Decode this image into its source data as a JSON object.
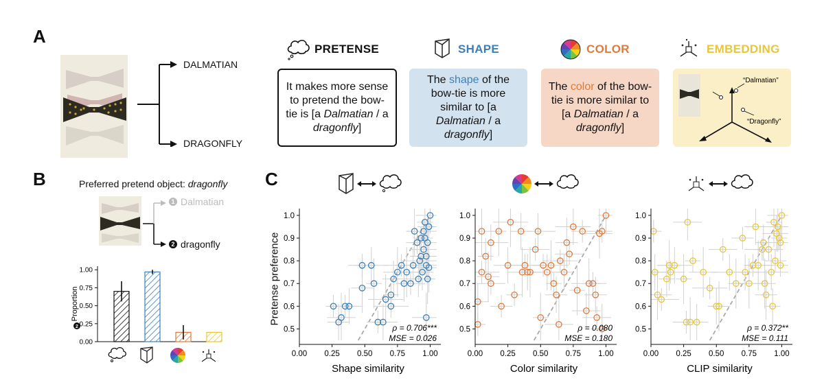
{
  "panelA": {
    "letter": "A",
    "branch_top": "DALMATIAN",
    "branch_bottom": "DRAGONFLY",
    "modes": [
      {
        "title": "PRETENSE",
        "color": "#111111",
        "text_pre": "It makes more sense to pretend the bow-tie is [a ",
        "i1": "Dalmatian",
        " mid": "",
        "text_mid": " / a ",
        "i2": "dragonfly",
        "text_post": "]",
        "bg": "#ffffff",
        "border": "#111111"
      },
      {
        "title": "SHAPE",
        "color": "#3d7fb8",
        "text_pre": "The ",
        "hl": "shape",
        "text_mid2": " of the bow-tie is more similar to [a ",
        "i1": "Dalmatian",
        "text_mid": " / a ",
        "i2": "dragonfly",
        "text_post": "]",
        "bg": "#d3e2ef"
      },
      {
        "title": "COLOR",
        "color": "#e07a3a",
        "text_pre": "The ",
        "hl": "color",
        "text_mid2": " of the bow-tie is more similar to [a ",
        "i1": "Dalmatian",
        "text_mid": " / a ",
        "i2": "dragonfly",
        "text_post": "]",
        "bg": "#f6d6c5"
      },
      {
        "title": "EMBEDDING",
        "color": "#e8c63a",
        "bg": "#fbefc8",
        "lab1": "“Dalmatian”",
        "lab2": "“Dragonfly”"
      }
    ]
  },
  "panelB": {
    "letter": "B",
    "title_pre": "Preferred pretend object: ",
    "title_obj": "dragonfly",
    "opt1": "Dalmatian",
    "opt2": "dragonfly",
    "opt1_num": "1",
    "opt2_num": "2",
    "ylabel": "Proportion",
    "yticks": [
      "0.00",
      "0.25",
      "0.50",
      "0.75",
      "1.00"
    ]
  },
  "panelC": {
    "letter": "C",
    "ylabel": "Pretense preference"
  },
  "colors": {
    "shape": "#3d7fb8",
    "color": "#e07a3a",
    "clip": "#e8c63a",
    "pretense": "#111111",
    "grey": "#bbbbbb"
  },
  "chart_data": [
    {
      "type": "bar",
      "categories": [
        "pretense",
        "shape",
        "color",
        "embedding"
      ],
      "values": [
        0.7,
        0.97,
        0.13,
        0.13
      ],
      "errors": [
        0.14,
        0.03,
        0.1,
        0.0
      ],
      "ylabel": "Proportion",
      "ylim": [
        0,
        1.05
      ]
    },
    {
      "type": "scatter",
      "xlabel": "Shape similarity",
      "ylabel": "Pretense preference",
      "xlim": [
        0,
        1.05
      ],
      "ylim": [
        0.45,
        1.03
      ],
      "xticks": [
        "0.00",
        "0.25",
        "0.50",
        "0.75",
        "1.00"
      ],
      "yticks": [
        "0.5",
        "0.6",
        "0.7",
        "0.8",
        "0.9",
        "1.0"
      ],
      "stat1_label": "ρ = 0.706***",
      "stat2_label": "MSE = 0.026",
      "points": [
        [
          0.26,
          0.6
        ],
        [
          0.3,
          0.53
        ],
        [
          0.32,
          0.55
        ],
        [
          0.35,
          0.6
        ],
        [
          0.38,
          0.6
        ],
        [
          0.48,
          0.68
        ],
        [
          0.48,
          0.78
        ],
        [
          0.55,
          0.78
        ],
        [
          0.57,
          0.7
        ],
        [
          0.6,
          0.53
        ],
        [
          0.64,
          0.53
        ],
        [
          0.66,
          0.63
        ],
        [
          0.7,
          0.65
        ],
        [
          0.72,
          0.72
        ],
        [
          0.75,
          0.75
        ],
        [
          0.78,
          0.78
        ],
        [
          0.8,
          0.7
        ],
        [
          0.82,
          0.75
        ],
        [
          0.85,
          0.7
        ],
        [
          0.87,
          0.78
        ],
        [
          0.88,
          0.93
        ],
        [
          0.9,
          0.88
        ],
        [
          0.91,
          0.72
        ],
        [
          0.92,
          0.8
        ],
        [
          0.93,
          0.9
        ],
        [
          0.94,
          0.75
        ],
        [
          0.95,
          0.85
        ],
        [
          0.95,
          0.93
        ],
        [
          0.96,
          0.97
        ],
        [
          0.97,
          0.82
        ],
        [
          0.97,
          0.78
        ],
        [
          0.98,
          0.88
        ],
        [
          0.98,
          0.72
        ],
        [
          0.99,
          0.95
        ],
        [
          1.0,
          1.0
        ],
        [
          0.99,
          0.77
        ],
        [
          0.96,
          0.9
        ],
        [
          0.93,
          0.82
        ],
        [
          0.97,
          0.55
        ],
        [
          0.7,
          0.6
        ]
      ]
    },
    {
      "type": "scatter",
      "xlabel": "Color similarity",
      "ylabel": "",
      "xlim": [
        0,
        1.05
      ],
      "ylim": [
        0.45,
        1.03
      ],
      "xticks": [
        "0.00",
        "0.25",
        "0.50",
        "0.75",
        "1.00"
      ],
      "yticks": [
        "0.5",
        "0.6",
        "0.7",
        "0.8",
        "0.9",
        "1.0"
      ],
      "stat1_label": "ρ = 0.080",
      "stat2_label": "MSE = 0.180",
      "points": [
        [
          0.02,
          0.52
        ],
        [
          0.02,
          0.62
        ],
        [
          0.05,
          0.93
        ],
        [
          0.05,
          0.75
        ],
        [
          0.08,
          0.82
        ],
        [
          0.1,
          0.73
        ],
        [
          0.12,
          0.7
        ],
        [
          0.12,
          0.88
        ],
        [
          0.18,
          0.93
        ],
        [
          0.2,
          0.6
        ],
        [
          0.25,
          0.78
        ],
        [
          0.27,
          0.97
        ],
        [
          0.3,
          0.65
        ],
        [
          0.35,
          0.93
        ],
        [
          0.36,
          0.75
        ],
        [
          0.38,
          0.78
        ],
        [
          0.4,
          0.75
        ],
        [
          0.42,
          0.75
        ],
        [
          0.46,
          0.85
        ],
        [
          0.48,
          0.93
        ],
        [
          0.5,
          0.55
        ],
        [
          0.52,
          0.78
        ],
        [
          0.55,
          0.75
        ],
        [
          0.58,
          0.78
        ],
        [
          0.6,
          0.7
        ],
        [
          0.62,
          0.65
        ],
        [
          0.64,
          0.52
        ],
        [
          0.65,
          0.8
        ],
        [
          0.68,
          0.75
        ],
        [
          0.7,
          0.88
        ],
        [
          0.72,
          0.83
        ],
        [
          0.75,
          0.95
        ],
        [
          0.78,
          0.67
        ],
        [
          0.82,
          0.93
        ],
        [
          0.85,
          0.58
        ],
        [
          0.87,
          0.7
        ],
        [
          0.9,
          0.7
        ],
        [
          0.92,
          0.65
        ],
        [
          0.95,
          0.92
        ],
        [
          0.97,
          0.93
        ],
        [
          1.0,
          1.0
        ],
        [
          0.97,
          0.5
        ],
        [
          0.93,
          0.55
        ]
      ]
    },
    {
      "type": "scatter",
      "xlabel": "CLIP similarity",
      "ylabel": "",
      "xlim": [
        0,
        1.05
      ],
      "ylim": [
        0.45,
        1.03
      ],
      "xticks": [
        "0.00",
        "0.25",
        "0.50",
        "0.75",
        "1.00"
      ],
      "yticks": [
        "0.5",
        "0.6",
        "0.7",
        "0.8",
        "0.9",
        "1.0"
      ],
      "stat1_label": "ρ = 0.372**",
      "stat2_label": "MSE = 0.111",
      "points": [
        [
          0.02,
          0.93
        ],
        [
          0.03,
          0.75
        ],
        [
          0.05,
          0.65
        ],
        [
          0.08,
          0.63
        ],
        [
          0.12,
          0.72
        ],
        [
          0.14,
          0.78
        ],
        [
          0.15,
          0.75
        ],
        [
          0.18,
          0.78
        ],
        [
          0.25,
          0.72
        ],
        [
          0.27,
          0.53
        ],
        [
          0.28,
          0.97
        ],
        [
          0.3,
          0.53
        ],
        [
          0.32,
          0.8
        ],
        [
          0.35,
          0.53
        ],
        [
          0.4,
          0.75
        ],
        [
          0.45,
          0.68
        ],
        [
          0.5,
          0.6
        ],
        [
          0.52,
          0.6
        ],
        [
          0.55,
          0.85
        ],
        [
          0.6,
          0.75
        ],
        [
          0.65,
          0.7
        ],
        [
          0.7,
          0.9
        ],
        [
          0.72,
          0.75
        ],
        [
          0.75,
          0.7
        ],
        [
          0.78,
          0.78
        ],
        [
          0.8,
          0.95
        ],
        [
          0.82,
          0.78
        ],
        [
          0.85,
          0.85
        ],
        [
          0.86,
          0.88
        ],
        [
          0.88,
          0.65
        ],
        [
          0.9,
          0.85
        ],
        [
          0.92,
          0.75
        ],
        [
          0.94,
          0.97
        ],
        [
          0.95,
          0.8
        ],
        [
          0.96,
          0.92
        ],
        [
          0.97,
          0.95
        ],
        [
          0.98,
          0.9
        ],
        [
          0.99,
          0.88
        ],
        [
          1.0,
          1.0
        ],
        [
          0.99,
          0.78
        ],
        [
          0.93,
          0.6
        ],
        [
          0.87,
          0.7
        ]
      ]
    }
  ]
}
